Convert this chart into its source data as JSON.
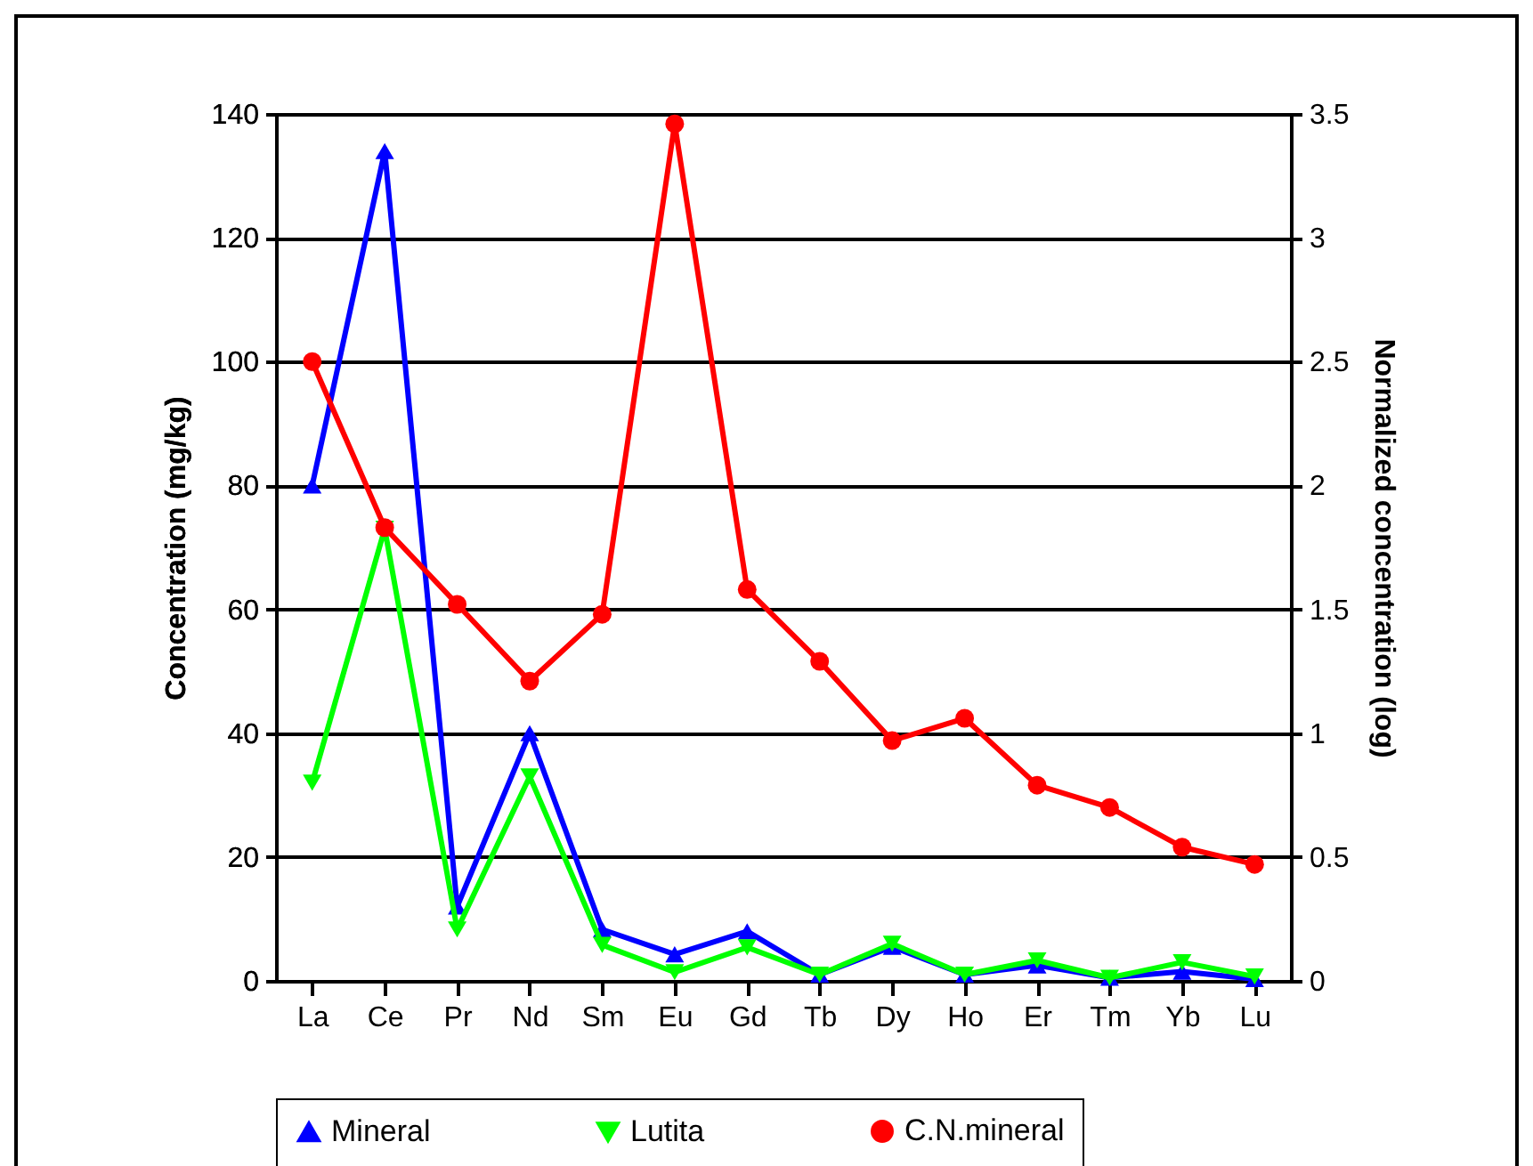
{
  "chart_data": {
    "type": "line",
    "ylabel": "Concentration (mg/kg)",
    "y2label": "Normalized concentration (log)",
    "categories": [
      "La",
      "Ce",
      "Pr",
      "Nd",
      "Sm",
      "Eu",
      "Gd",
      "Tb",
      "Dy",
      "Ho",
      "Er",
      "Tm",
      "Yb",
      "Lu"
    ],
    "series": [
      {
        "name": "Mineral",
        "color": "#0000ff",
        "marker": "triangle",
        "values": [
          80,
          134,
          12,
          40,
          8.3,
          4.3,
          8,
          1,
          5.5,
          1,
          2.5,
          0.5,
          1.5,
          0.3
        ]
      },
      {
        "name": "Lutita",
        "color": "#00ff00",
        "marker": "triangle-down",
        "values": [
          32,
          73,
          8.3,
          33,
          5.8,
          1.4,
          5.4,
          1,
          6,
          1,
          3.3,
          0.5,
          3,
          0.7
        ]
      },
      {
        "name": "C.N.mineral",
        "color": "#ff0000",
        "marker": "circle",
        "axis": "y2",
        "values": [
          2.5,
          1.83,
          1.52,
          1.21,
          1.48,
          3.46,
          1.58,
          1.29,
          0.97,
          1.06,
          0.79,
          0.7,
          0.54,
          0.47
        ]
      }
    ],
    "ylim": [
      0,
      140
    ],
    "yticks": [
      0,
      20,
      40,
      60,
      80,
      100,
      120,
      140
    ],
    "y2lim": [
      0,
      3.5
    ],
    "y2ticks": [
      0,
      0.5,
      1,
      1.5,
      2,
      2.5,
      3,
      3.5
    ],
    "grid": "y",
    "legend": "bottom"
  }
}
